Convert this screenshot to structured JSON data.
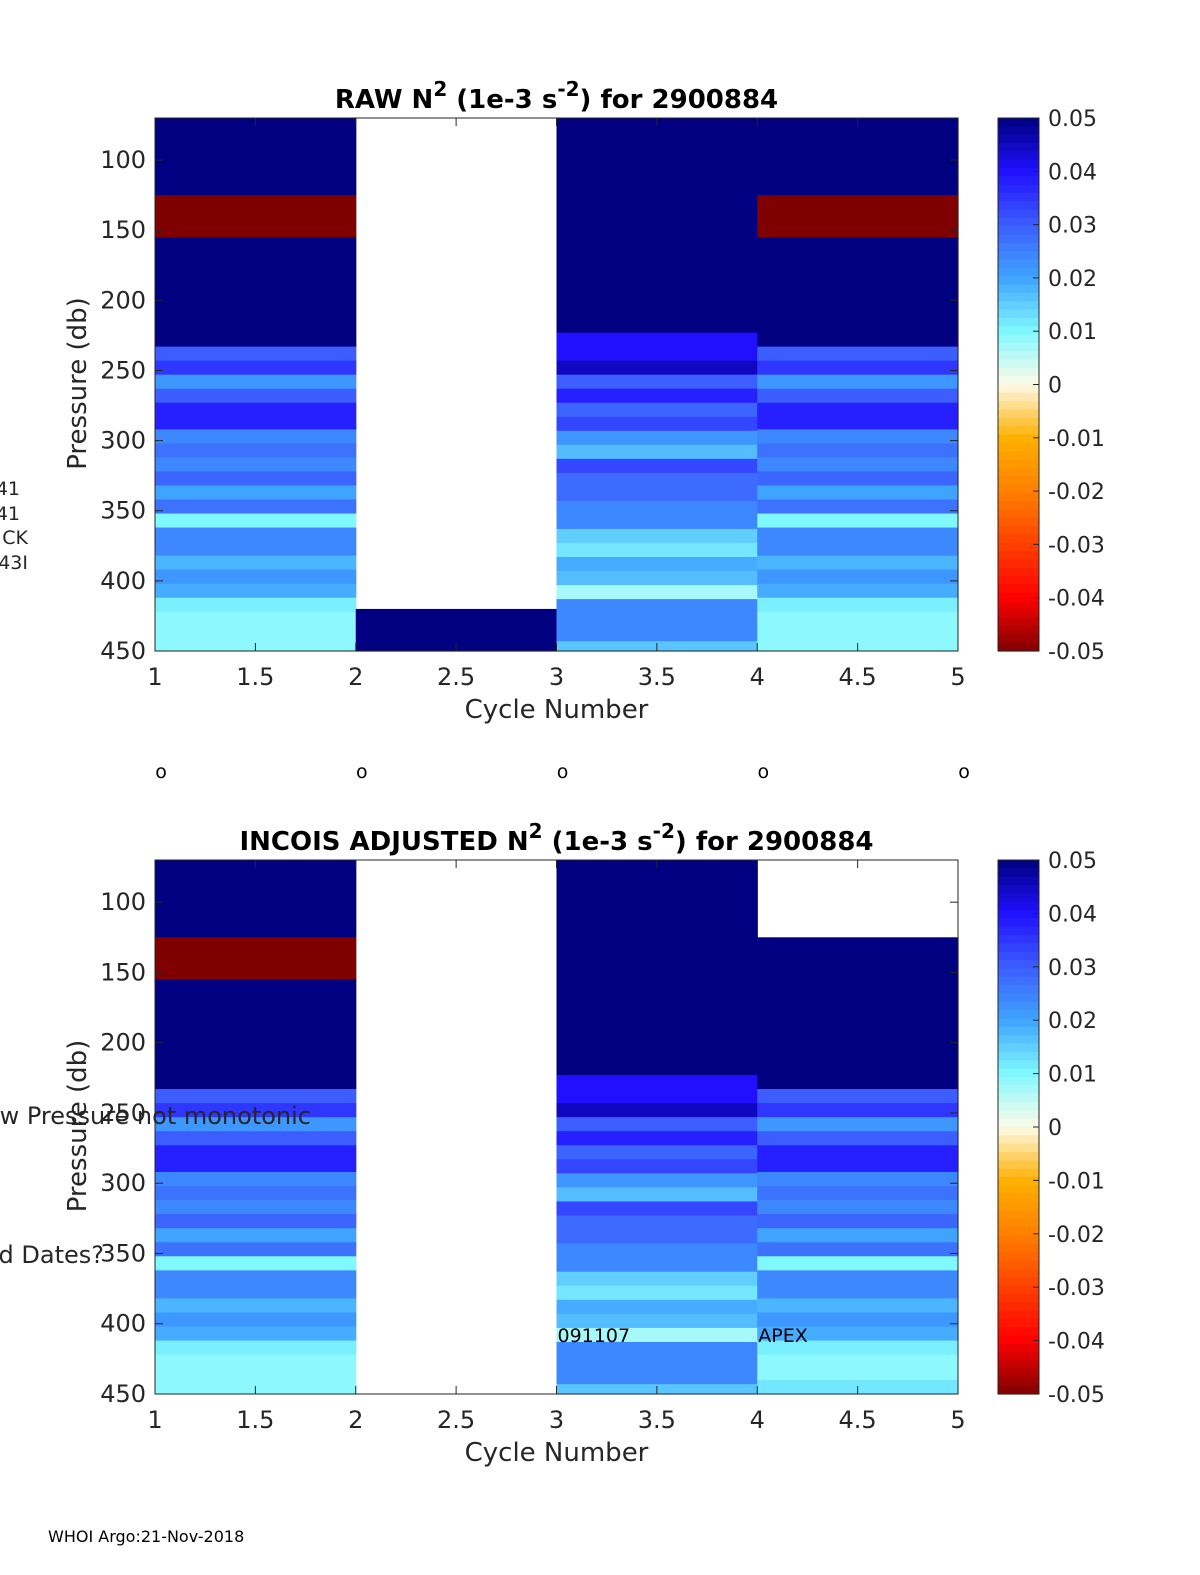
{
  "figure": {
    "footer": "WHOI Argo:21-Nov-2018",
    "cycle_markers": [
      "o",
      "o",
      "o",
      "o",
      "o"
    ],
    "side_labels": [
      "41",
      "41",
      "CK",
      "43I",
      "w Pressure not monotonic",
      "d Dates?"
    ]
  },
  "colorbar": {
    "range": [
      -0.05,
      0.05
    ],
    "ticks": [
      "0.05",
      "0.04",
      "0.03",
      "0.02",
      "0.01",
      "0",
      "-0.01",
      "-0.02",
      "-0.03",
      "-0.04",
      "-0.05"
    ],
    "colors": [
      {
        "v": -0.05,
        "c": "#800000"
      },
      {
        "v": -0.04,
        "c": "#ff0000"
      },
      {
        "v": -0.03,
        "c": "#ff4000"
      },
      {
        "v": -0.02,
        "c": "#ff8000"
      },
      {
        "v": -0.01,
        "c": "#ffb000"
      },
      {
        "v": 0.0,
        "c": "#fffbe8"
      },
      {
        "v": 0.01,
        "c": "#80f8ff"
      },
      {
        "v": 0.02,
        "c": "#3fa4ff"
      },
      {
        "v": 0.03,
        "c": "#3c5dff"
      },
      {
        "v": 0.04,
        "c": "#2010ff"
      },
      {
        "v": 0.05,
        "c": "#000080"
      }
    ]
  },
  "chart_data": [
    {
      "type": "heatmap",
      "title_parts": [
        "RAW N",
        "2",
        " (1e-3 s",
        "-2",
        ") for 2900884"
      ],
      "title": "RAW N2 (1e-3 s-2) for 2900884",
      "xlabel": "Cycle Number",
      "ylabel": "Pressure (db)",
      "xlim": [
        1,
        5
      ],
      "ylim": [
        70,
        450
      ],
      "xticks": [
        "1",
        "1.5",
        "2",
        "2.5",
        "3",
        "3.5",
        "4",
        "4.5",
        "5"
      ],
      "yticks": [
        "100",
        "150",
        "200",
        "250",
        "300",
        "350",
        "400",
        "450"
      ],
      "annotations": [],
      "columns": [
        {
          "x": [
            1,
            2
          ],
          "layers": [
            {
              "p": [
                70,
                125
              ],
              "v": 0.05
            },
            {
              "p": [
                125,
                155
              ],
              "v": -0.05
            },
            {
              "p": [
                155,
                233
              ],
              "v": 0.05
            },
            {
              "p": [
                233,
                243
              ],
              "v": 0.03
            },
            {
              "p": [
                243,
                253
              ],
              "v": 0.035
            },
            {
              "p": [
                253,
                263
              ],
              "v": 0.022
            },
            {
              "p": [
                263,
                273
              ],
              "v": 0.03
            },
            {
              "p": [
                273,
                292
              ],
              "v": 0.038
            },
            {
              "p": [
                292,
                302
              ],
              "v": 0.024
            },
            {
              "p": [
                302,
                312
              ],
              "v": 0.027
            },
            {
              "p": [
                312,
                322
              ],
              "v": 0.024
            },
            {
              "p": [
                322,
                332
              ],
              "v": 0.029
            },
            {
              "p": [
                332,
                342
              ],
              "v": 0.02
            },
            {
              "p": [
                342,
                352
              ],
              "v": 0.027
            },
            {
              "p": [
                352,
                362
              ],
              "v": 0.01
            },
            {
              "p": [
                362,
                382
              ],
              "v": 0.024
            },
            {
              "p": [
                382,
                392
              ],
              "v": 0.018
            },
            {
              "p": [
                392,
                402
              ],
              "v": 0.022
            },
            {
              "p": [
                402,
                412
              ],
              "v": 0.019
            },
            {
              "p": [
                412,
                422
              ],
              "v": 0.011
            },
            {
              "p": [
                422,
                450
              ],
              "v": 0.009
            }
          ]
        },
        {
          "x": [
            2,
            3
          ],
          "layers": [
            {
              "p": [
                420,
                450
              ],
              "v": 0.05
            }
          ]
        },
        {
          "x": [
            3,
            4
          ],
          "layers": [
            {
              "p": [
                70,
                223
              ],
              "v": 0.05
            },
            {
              "p": [
                223,
                243
              ],
              "v": 0.04
            },
            {
              "p": [
                243,
                253
              ],
              "v": 0.045
            },
            {
              "p": [
                253,
                263
              ],
              "v": 0.03
            },
            {
              "p": [
                263,
                273
              ],
              "v": 0.038
            },
            {
              "p": [
                273,
                283
              ],
              "v": 0.029
            },
            {
              "p": [
                283,
                293
              ],
              "v": 0.033
            },
            {
              "p": [
                293,
                303
              ],
              "v": 0.022
            },
            {
              "p": [
                303,
                313
              ],
              "v": 0.017
            },
            {
              "p": [
                313,
                323
              ],
              "v": 0.033
            },
            {
              "p": [
                323,
                343
              ],
              "v": 0.028
            },
            {
              "p": [
                343,
                363
              ],
              "v": 0.024
            },
            {
              "p": [
                363,
                373
              ],
              "v": 0.015
            },
            {
              "p": [
                373,
                383
              ],
              "v": 0.012
            },
            {
              "p": [
                383,
                393
              ],
              "v": 0.019
            },
            {
              "p": [
                393,
                403
              ],
              "v": 0.017
            },
            {
              "p": [
                403,
                413
              ],
              "v": 0.007
            },
            {
              "p": [
                413,
                443
              ],
              "v": 0.024
            },
            {
              "p": [
                443,
                450
              ],
              "v": 0.016
            }
          ]
        },
        {
          "x": [
            4,
            5
          ],
          "layers": [
            {
              "p": [
                70,
                125
              ],
              "v": 0.05
            },
            {
              "p": [
                125,
                155
              ],
              "v": -0.05
            },
            {
              "p": [
                155,
                233
              ],
              "v": 0.05
            },
            {
              "p": [
                233,
                243
              ],
              "v": 0.03
            },
            {
              "p": [
                243,
                253
              ],
              "v": 0.035
            },
            {
              "p": [
                253,
                263
              ],
              "v": 0.022
            },
            {
              "p": [
                263,
                273
              ],
              "v": 0.03
            },
            {
              "p": [
                273,
                292
              ],
              "v": 0.038
            },
            {
              "p": [
                292,
                302
              ],
              "v": 0.024
            },
            {
              "p": [
                302,
                312
              ],
              "v": 0.027
            },
            {
              "p": [
                312,
                322
              ],
              "v": 0.024
            },
            {
              "p": [
                322,
                332
              ],
              "v": 0.029
            },
            {
              "p": [
                332,
                342
              ],
              "v": 0.02
            },
            {
              "p": [
                342,
                352
              ],
              "v": 0.027
            },
            {
              "p": [
                352,
                362
              ],
              "v": 0.01
            },
            {
              "p": [
                362,
                382
              ],
              "v": 0.024
            },
            {
              "p": [
                382,
                392
              ],
              "v": 0.018
            },
            {
              "p": [
                392,
                402
              ],
              "v": 0.022
            },
            {
              "p": [
                402,
                412
              ],
              "v": 0.019
            },
            {
              "p": [
                412,
                422
              ],
              "v": 0.011
            },
            {
              "p": [
                422,
                450
              ],
              "v": 0.009
            }
          ]
        }
      ]
    },
    {
      "type": "heatmap",
      "title_parts": [
        "INCOIS  ADJUSTED N",
        "2",
        " (1e-3 s",
        "-2",
        ") for 2900884"
      ],
      "title": "INCOIS  ADJUSTED N2 (1e-3 s-2) for 2900884",
      "xlabel": "Cycle Number",
      "ylabel": "Pressure (db)",
      "xlim": [
        1,
        5
      ],
      "ylim": [
        70,
        450
      ],
      "xticks": [
        "1",
        "1.5",
        "2",
        "2.5",
        "3",
        "3.5",
        "4",
        "4.5",
        "5"
      ],
      "yticks": [
        "100",
        "150",
        "200",
        "250",
        "300",
        "350",
        "400",
        "450"
      ],
      "annotations": [
        {
          "x": 3,
          "p": 408,
          "text": "091107"
        },
        {
          "x": 4,
          "p": 408,
          "text": "APEX"
        }
      ],
      "columns": [
        {
          "x": [
            1,
            2
          ],
          "layers": [
            {
              "p": [
                70,
                125
              ],
              "v": 0.05
            },
            {
              "p": [
                125,
                155
              ],
              "v": -0.05
            },
            {
              "p": [
                155,
                233
              ],
              "v": 0.05
            },
            {
              "p": [
                233,
                243
              ],
              "v": 0.03
            },
            {
              "p": [
                243,
                253
              ],
              "v": 0.035
            },
            {
              "p": [
                253,
                263
              ],
              "v": 0.022
            },
            {
              "p": [
                263,
                273
              ],
              "v": 0.03
            },
            {
              "p": [
                273,
                292
              ],
              "v": 0.038
            },
            {
              "p": [
                292,
                302
              ],
              "v": 0.024
            },
            {
              "p": [
                302,
                312
              ],
              "v": 0.027
            },
            {
              "p": [
                312,
                322
              ],
              "v": 0.024
            },
            {
              "p": [
                322,
                332
              ],
              "v": 0.029
            },
            {
              "p": [
                332,
                342
              ],
              "v": 0.02
            },
            {
              "p": [
                342,
                352
              ],
              "v": 0.027
            },
            {
              "p": [
                352,
                362
              ],
              "v": 0.01
            },
            {
              "p": [
                362,
                382
              ],
              "v": 0.024
            },
            {
              "p": [
                382,
                392
              ],
              "v": 0.018
            },
            {
              "p": [
                392,
                402
              ],
              "v": 0.022
            },
            {
              "p": [
                402,
                412
              ],
              "v": 0.019
            },
            {
              "p": [
                412,
                422
              ],
              "v": 0.011
            },
            {
              "p": [
                422,
                450
              ],
              "v": 0.009
            }
          ]
        },
        {
          "x": [
            3,
            4
          ],
          "layers": [
            {
              "p": [
                70,
                223
              ],
              "v": 0.05
            },
            {
              "p": [
                223,
                243
              ],
              "v": 0.04
            },
            {
              "p": [
                243,
                253
              ],
              "v": 0.045
            },
            {
              "p": [
                253,
                263
              ],
              "v": 0.03
            },
            {
              "p": [
                263,
                273
              ],
              "v": 0.038
            },
            {
              "p": [
                273,
                283
              ],
              "v": 0.029
            },
            {
              "p": [
                283,
                293
              ],
              "v": 0.033
            },
            {
              "p": [
                293,
                303
              ],
              "v": 0.022
            },
            {
              "p": [
                303,
                313
              ],
              "v": 0.017
            },
            {
              "p": [
                313,
                323
              ],
              "v": 0.033
            },
            {
              "p": [
                323,
                343
              ],
              "v": 0.028
            },
            {
              "p": [
                343,
                363
              ],
              "v": 0.024
            },
            {
              "p": [
                363,
                373
              ],
              "v": 0.015
            },
            {
              "p": [
                373,
                383
              ],
              "v": 0.012
            },
            {
              "p": [
                383,
                393
              ],
              "v": 0.019
            },
            {
              "p": [
                393,
                403
              ],
              "v": 0.017
            },
            {
              "p": [
                403,
                413
              ],
              "v": 0.007
            },
            {
              "p": [
                413,
                443
              ],
              "v": 0.024
            },
            {
              "p": [
                443,
                450
              ],
              "v": 0.016
            }
          ]
        },
        {
          "x": [
            4,
            5
          ],
          "layers": [
            {
              "p": [
                125,
                233
              ],
              "v": 0.05
            },
            {
              "p": [
                233,
                243
              ],
              "v": 0.03
            },
            {
              "p": [
                243,
                253
              ],
              "v": 0.035
            },
            {
              "p": [
                253,
                263
              ],
              "v": 0.022
            },
            {
              "p": [
                263,
                273
              ],
              "v": 0.03
            },
            {
              "p": [
                273,
                292
              ],
              "v": 0.038
            },
            {
              "p": [
                292,
                302
              ],
              "v": 0.024
            },
            {
              "p": [
                302,
                312
              ],
              "v": 0.027
            },
            {
              "p": [
                312,
                322
              ],
              "v": 0.024
            },
            {
              "p": [
                322,
                332
              ],
              "v": 0.029
            },
            {
              "p": [
                332,
                342
              ],
              "v": 0.02
            },
            {
              "p": [
                342,
                352
              ],
              "v": 0.027
            },
            {
              "p": [
                352,
                362
              ],
              "v": 0.01
            },
            {
              "p": [
                362,
                382
              ],
              "v": 0.024
            },
            {
              "p": [
                382,
                392
              ],
              "v": 0.018
            },
            {
              "p": [
                392,
                402
              ],
              "v": 0.022
            },
            {
              "p": [
                402,
                412
              ],
              "v": 0.019
            },
            {
              "p": [
                412,
                422
              ],
              "v": 0.011
            },
            {
              "p": [
                422,
                440
              ],
              "v": 0.009
            },
            {
              "p": [
                440,
                450
              ],
              "v": 0.012
            }
          ]
        }
      ]
    }
  ]
}
